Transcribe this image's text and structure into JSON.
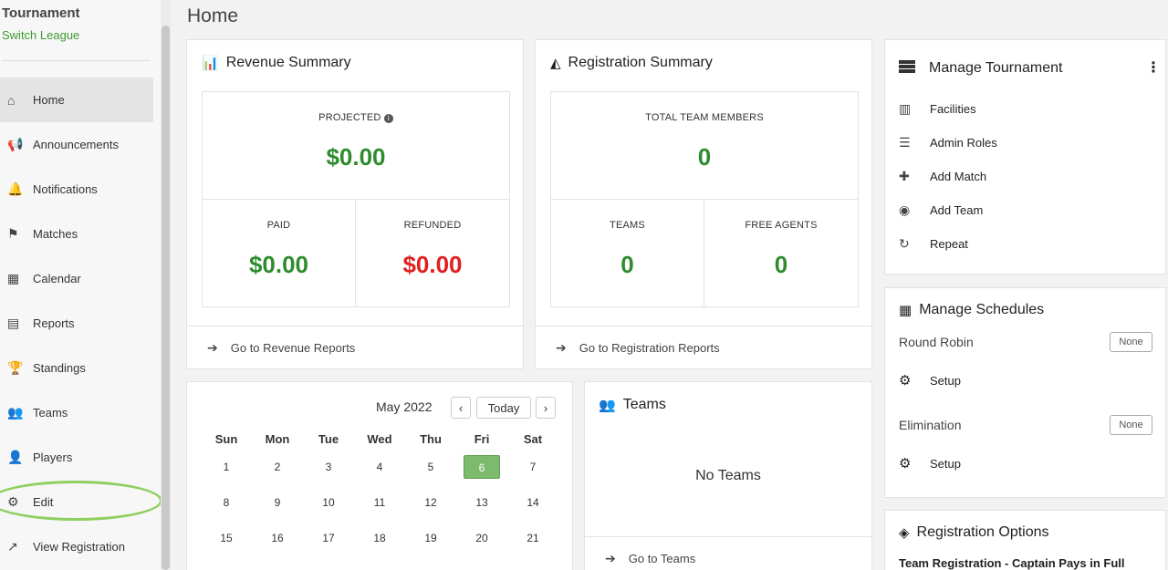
{
  "sidebar": {
    "org_title": "Tournament",
    "org_subtitle": "Switch League",
    "items": [
      {
        "label": "Home",
        "icon": "home-icon",
        "glyph": "⌂"
      },
      {
        "label": "Announcements",
        "icon": "megaphone-icon",
        "glyph": "📢"
      },
      {
        "label": "Notifications",
        "icon": "bell-icon",
        "glyph": "🔔"
      },
      {
        "label": "Matches",
        "icon": "flag-icon",
        "glyph": "⚑"
      },
      {
        "label": "Calendar",
        "icon": "calendar-icon",
        "glyph": "▦"
      },
      {
        "label": "Reports",
        "icon": "table-icon",
        "glyph": "▤"
      },
      {
        "label": "Standings",
        "icon": "trophy-icon",
        "glyph": "🏆"
      },
      {
        "label": "Teams",
        "icon": "users-icon",
        "glyph": "👥"
      },
      {
        "label": "Players",
        "icon": "user-icon",
        "glyph": "👤"
      },
      {
        "label": "Edit",
        "icon": "gear-icon",
        "glyph": "⚙"
      },
      {
        "label": "View Registration",
        "icon": "external-link-icon",
        "glyph": "↗"
      }
    ]
  },
  "page": {
    "title": "Home"
  },
  "revenue": {
    "title": "Revenue Summary",
    "projected_label": "PROJECTED",
    "projected_value": "$0.00",
    "paid_label": "PAID",
    "paid_value": "$0.00",
    "refunded_label": "REFUNDED",
    "refunded_value": "$0.00",
    "footer": "Go to Revenue Reports"
  },
  "registration": {
    "title": "Registration Summary",
    "total_label": "TOTAL TEAM MEMBERS",
    "total_value": "0",
    "teams_label": "TEAMS",
    "teams_value": "0",
    "free_label": "FREE AGENTS",
    "free_value": "0",
    "footer": "Go to Registration Reports"
  },
  "calendar": {
    "month": "May 2022",
    "today_label": "Today",
    "prev": "‹",
    "next": "›",
    "weekdays": [
      "Sun",
      "Mon",
      "Tue",
      "Wed",
      "Thu",
      "Fri",
      "Sat"
    ],
    "weeks": [
      [
        "1",
        "2",
        "3",
        "4",
        "5",
        "6",
        "7"
      ],
      [
        "8",
        "9",
        "10",
        "11",
        "12",
        "13",
        "14"
      ],
      [
        "15",
        "16",
        "17",
        "18",
        "19",
        "20",
        "21"
      ]
    ],
    "today": "6"
  },
  "teams": {
    "title": "Teams",
    "empty": "No Teams",
    "footer": "Go to Teams"
  },
  "manage_tournament": {
    "title": "Manage Tournament",
    "items": [
      {
        "label": "Facilities",
        "icon": "building-icon",
        "glyph": "▥"
      },
      {
        "label": "Admin Roles",
        "icon": "sliders-icon",
        "glyph": "☰"
      },
      {
        "label": "Add Match",
        "icon": "plus-icon",
        "glyph": "✚"
      },
      {
        "label": "Add Team",
        "icon": "user-circle-icon",
        "glyph": "◉"
      },
      {
        "label": "Repeat",
        "icon": "repeat-icon",
        "glyph": "↻"
      }
    ]
  },
  "schedules": {
    "title": "Manage Schedules",
    "round_robin": "Round Robin",
    "round_robin_badge": "None",
    "setup1": "Setup",
    "elimination": "Elimination",
    "elimination_badge": "None",
    "setup2": "Setup"
  },
  "reg_options": {
    "title": "Registration Options",
    "first_option": "Team Registration - Captain Pays in Full"
  },
  "colors": {
    "accent_green": "#2e8b2e",
    "refund_red": "#e01f1f",
    "today_green": "#7cba6d",
    "highlight_ring": "#8fd061"
  }
}
